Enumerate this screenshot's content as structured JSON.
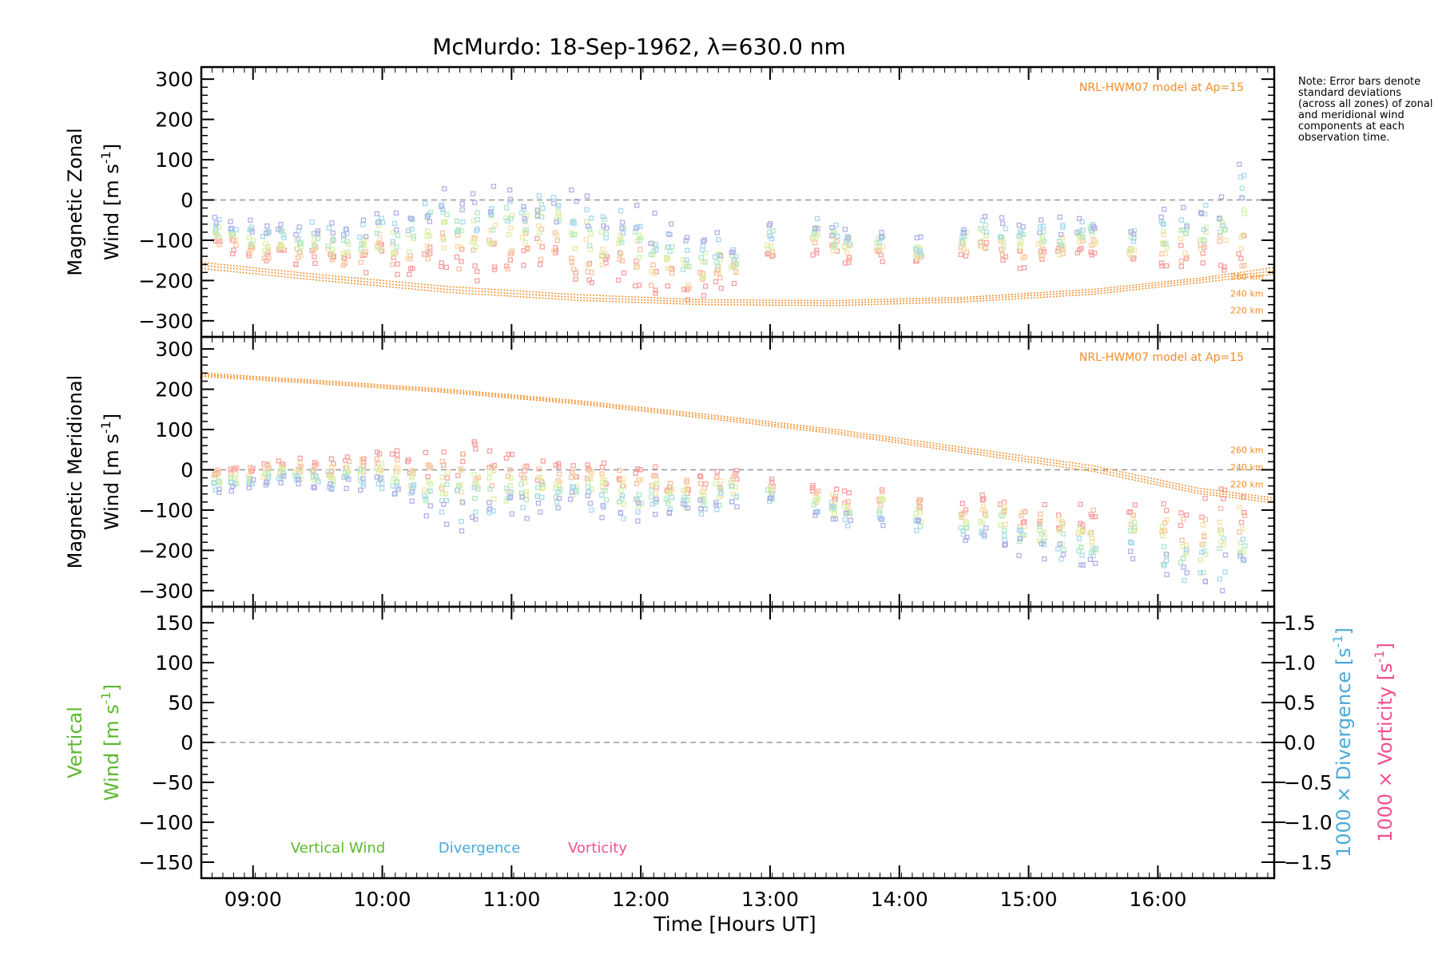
{
  "title": "McMurdo: 18-Sep-1962, λ=630.0 nm",
  "note": "Note: Error bars denote standard deviations (across all zones) of zonal and meridional wind components at each observation time.",
  "colors": {
    "model": "#f28c28",
    "vertical": "#5cb82e",
    "divergence": "#4aaad8",
    "vorticity": "#f0508c",
    "zero_line": "#888888"
  },
  "chart_data": [
    {
      "type": "scatter",
      "name": "zonal",
      "title": "McMurdo: 18-Sep-1962, λ=630.0 nm",
      "xlabel": "",
      "ylabel_line1": "Magnetic Zonal",
      "ylabel_line2": "Wind [m s",
      "ylabel_sup": "-1",
      "ylabel_end": "]",
      "ylim": [
        -340,
        330
      ],
      "yticks": [
        -300,
        -200,
        -100,
        0,
        100,
        200,
        300
      ],
      "ytick_labels": [
        "−300",
        "−200",
        "−100",
        "0",
        "100",
        "200",
        "300"
      ],
      "model_label": "NRL-HWM07 model at Ap=15",
      "model_curves": [
        {
          "label": "260 km",
          "points": [
            [
              8.6,
              -155
            ],
            [
              9.5,
              -185
            ],
            [
              10.5,
              -215
            ],
            [
              11.5,
              -235
            ],
            [
              12.5,
              -248
            ],
            [
              13.5,
              -250
            ],
            [
              14.5,
              -242
            ],
            [
              15.5,
              -222
            ],
            [
              16.3,
              -195
            ],
            [
              16.9,
              -168
            ]
          ]
        },
        {
          "label": "240 km",
          "points": [
            [
              8.6,
              -162
            ],
            [
              9.5,
              -192
            ],
            [
              10.5,
              -222
            ],
            [
              11.5,
              -242
            ],
            [
              12.5,
              -254
            ],
            [
              13.5,
              -256
            ],
            [
              14.5,
              -247
            ],
            [
              15.5,
              -228
            ],
            [
              16.3,
              -200
            ],
            [
              16.9,
              -176
            ]
          ]
        },
        {
          "label": "220 km",
          "points": [
            [
              8.6,
              -170
            ],
            [
              9.5,
              -199
            ],
            [
              10.5,
              -229
            ],
            [
              11.5,
              -249
            ],
            [
              12.5,
              -260
            ],
            [
              13.5,
              -262
            ],
            [
              14.5,
              -253
            ],
            [
              15.5,
              -234
            ],
            [
              16.3,
              -206
            ],
            [
              16.9,
              -184
            ]
          ]
        }
      ]
    },
    {
      "type": "scatter",
      "name": "meridional",
      "xlabel": "",
      "ylabel_line1": "Magnetic Meridional",
      "ylabel_line2": "Wind [m s",
      "ylabel_sup": "-1",
      "ylabel_end": "]",
      "ylim": [
        -340,
        330
      ],
      "yticks": [
        -300,
        -200,
        -100,
        0,
        100,
        200,
        300
      ],
      "ytick_labels": [
        "−300",
        "−200",
        "−100",
        "0",
        "100",
        "200",
        "300"
      ],
      "model_label": "NRL-HWM07 model at Ap=15",
      "model_curves": [
        {
          "label": "260 km",
          "points": [
            [
              8.6,
              240
            ],
            [
              9.5,
              222
            ],
            [
              10.5,
              200
            ],
            [
              11.5,
              172
            ],
            [
              12.5,
              138
            ],
            [
              13.5,
              100
            ],
            [
              14.5,
              55
            ],
            [
              15.5,
              10
            ],
            [
              16.3,
              -45
            ],
            [
              16.9,
              -70
            ]
          ]
        },
        {
          "label": "240 km",
          "points": [
            [
              8.6,
              236
            ],
            [
              9.5,
              218
            ],
            [
              10.5,
              196
            ],
            [
              11.5,
              168
            ],
            [
              12.5,
              133
            ],
            [
              13.5,
              95
            ],
            [
              14.5,
              49
            ],
            [
              15.5,
              3
            ],
            [
              16.3,
              -52
            ],
            [
              16.9,
              -76
            ]
          ]
        },
        {
          "label": "220 km",
          "points": [
            [
              8.6,
              232
            ],
            [
              9.5,
              214
            ],
            [
              10.5,
              192
            ],
            [
              11.5,
              164
            ],
            [
              12.5,
              128
            ],
            [
              13.5,
              90
            ],
            [
              14.5,
              43
            ],
            [
              15.5,
              -4
            ],
            [
              16.3,
              -58
            ],
            [
              16.9,
              -82
            ]
          ]
        }
      ]
    },
    {
      "type": "line",
      "name": "vertical",
      "xlabel": "Time [Hours UT]",
      "ylabel_line1": "Vertical",
      "ylabel_line2": "Wind [m s",
      "ylabel_sup": "-1",
      "ylabel_end": "]",
      "ylim": [
        -170,
        170
      ],
      "yticks": [
        -150,
        -100,
        -50,
        0,
        50,
        100,
        150
      ],
      "ytick_labels": [
        "−150",
        "−100",
        "−50",
        "0",
        "50",
        "100",
        "150"
      ],
      "y2lim": [
        -1.7,
        1.7
      ],
      "y2ticks": [
        -1.5,
        -1.0,
        -0.5,
        0.0,
        0.5,
        1.0,
        1.5
      ],
      "y2tick_labels": [
        "−1.5",
        "−1.0",
        "−0.5",
        "0.0",
        "0.5",
        "1.0",
        "1.5"
      ],
      "y2label_div": "1000 × Divergence [s",
      "y2label_vort": "1000 × Vorticity [s",
      "y2label_sup": "-1",
      "y2label_end": "]",
      "legend": [
        "Vertical Wind",
        "Divergence",
        "Vorticity"
      ],
      "series": []
    }
  ],
  "xaxis": {
    "xlim": [
      8.6,
      16.9
    ],
    "ticks": [
      9,
      10,
      11,
      12,
      13,
      14,
      15,
      16
    ],
    "tick_labels": [
      "09:00",
      "10:00",
      "11:00",
      "12:00",
      "13:00",
      "14:00",
      "15:00",
      "16:00"
    ]
  },
  "observations": {
    "times": [
      8.72,
      8.85,
      8.98,
      9.1,
      9.22,
      9.35,
      9.48,
      9.6,
      9.72,
      9.85,
      9.98,
      10.1,
      10.22,
      10.35,
      10.48,
      10.6,
      10.72,
      10.85,
      10.98,
      11.1,
      11.22,
      11.35,
      11.48,
      11.6,
      11.72,
      11.85,
      11.98,
      12.1,
      12.22,
      12.35,
      12.48,
      12.6,
      12.72,
      13.0,
      13.35,
      13.5,
      13.6,
      13.85,
      14.15,
      14.5,
      14.65,
      14.8,
      14.95,
      15.1,
      15.25,
      15.4,
      15.5,
      15.8,
      16.05,
      16.2,
      16.35,
      16.5,
      16.65
    ],
    "zonal_mean": [
      -90,
      -100,
      -110,
      -115,
      -110,
      -120,
      -115,
      -125,
      -130,
      -125,
      -110,
      -120,
      -115,
      -100,
      -95,
      -105,
      -110,
      -100,
      -105,
      -95,
      -90,
      -100,
      -110,
      -115,
      -120,
      -125,
      -140,
      -150,
      -170,
      -180,
      -175,
      -170,
      -160,
      -120,
      -100,
      -110,
      -120,
      -120,
      -135,
      -105,
      -100,
      -110,
      -125,
      -120,
      -115,
      -105,
      -100,
      -120,
      -110,
      -110,
      -105,
      -95,
      -80
    ],
    "zonal_spread": [
      40,
      45,
      45,
      50,
      50,
      50,
      55,
      60,
      60,
      65,
      70,
      75,
      80,
      85,
      95,
      100,
      110,
      105,
      100,
      95,
      100,
      105,
      110,
      105,
      95,
      90,
      100,
      95,
      85,
      80,
      75,
      70,
      60,
      50,
      50,
      45,
      45,
      40,
      35,
      40,
      45,
      50,
      55,
      60,
      55,
      55,
      50,
      50,
      70,
      75,
      85,
      95,
      130
    ],
    "merid_mean": [
      -20,
      -15,
      -10,
      -5,
      0,
      0,
      -5,
      -5,
      0,
      5,
      5,
      0,
      -10,
      -20,
      -25,
      -20,
      -15,
      -25,
      -30,
      -35,
      -30,
      -25,
      -30,
      -35,
      -40,
      -45,
      -50,
      -45,
      -55,
      -60,
      -50,
      -45,
      -40,
      -50,
      -70,
      -80,
      -85,
      -80,
      -100,
      -120,
      -115,
      -110,
      -130,
      -140,
      -150,
      -145,
      -150,
      -130,
      -160,
      -170,
      -165,
      -150,
      -140
    ],
    "merid_spread": [
      30,
      30,
      30,
      30,
      30,
      35,
      35,
      40,
      40,
      45,
      50,
      55,
      65,
      75,
      90,
      100,
      100,
      90,
      80,
      70,
      60,
      55,
      55,
      60,
      65,
      70,
      70,
      60,
      55,
      55,
      55,
      50,
      45,
      35,
      45,
      45,
      50,
      50,
      55,
      60,
      60,
      60,
      65,
      70,
      75,
      75,
      80,
      70,
      90,
      100,
      110,
      120,
      130
    ]
  },
  "fov_colors": [
    "#f8a0a0",
    "#f8c0a0",
    "#f8e0a8",
    "#d8f0a8",
    "#b0e8c8",
    "#a8d8f0",
    "#b0b0e8"
  ]
}
